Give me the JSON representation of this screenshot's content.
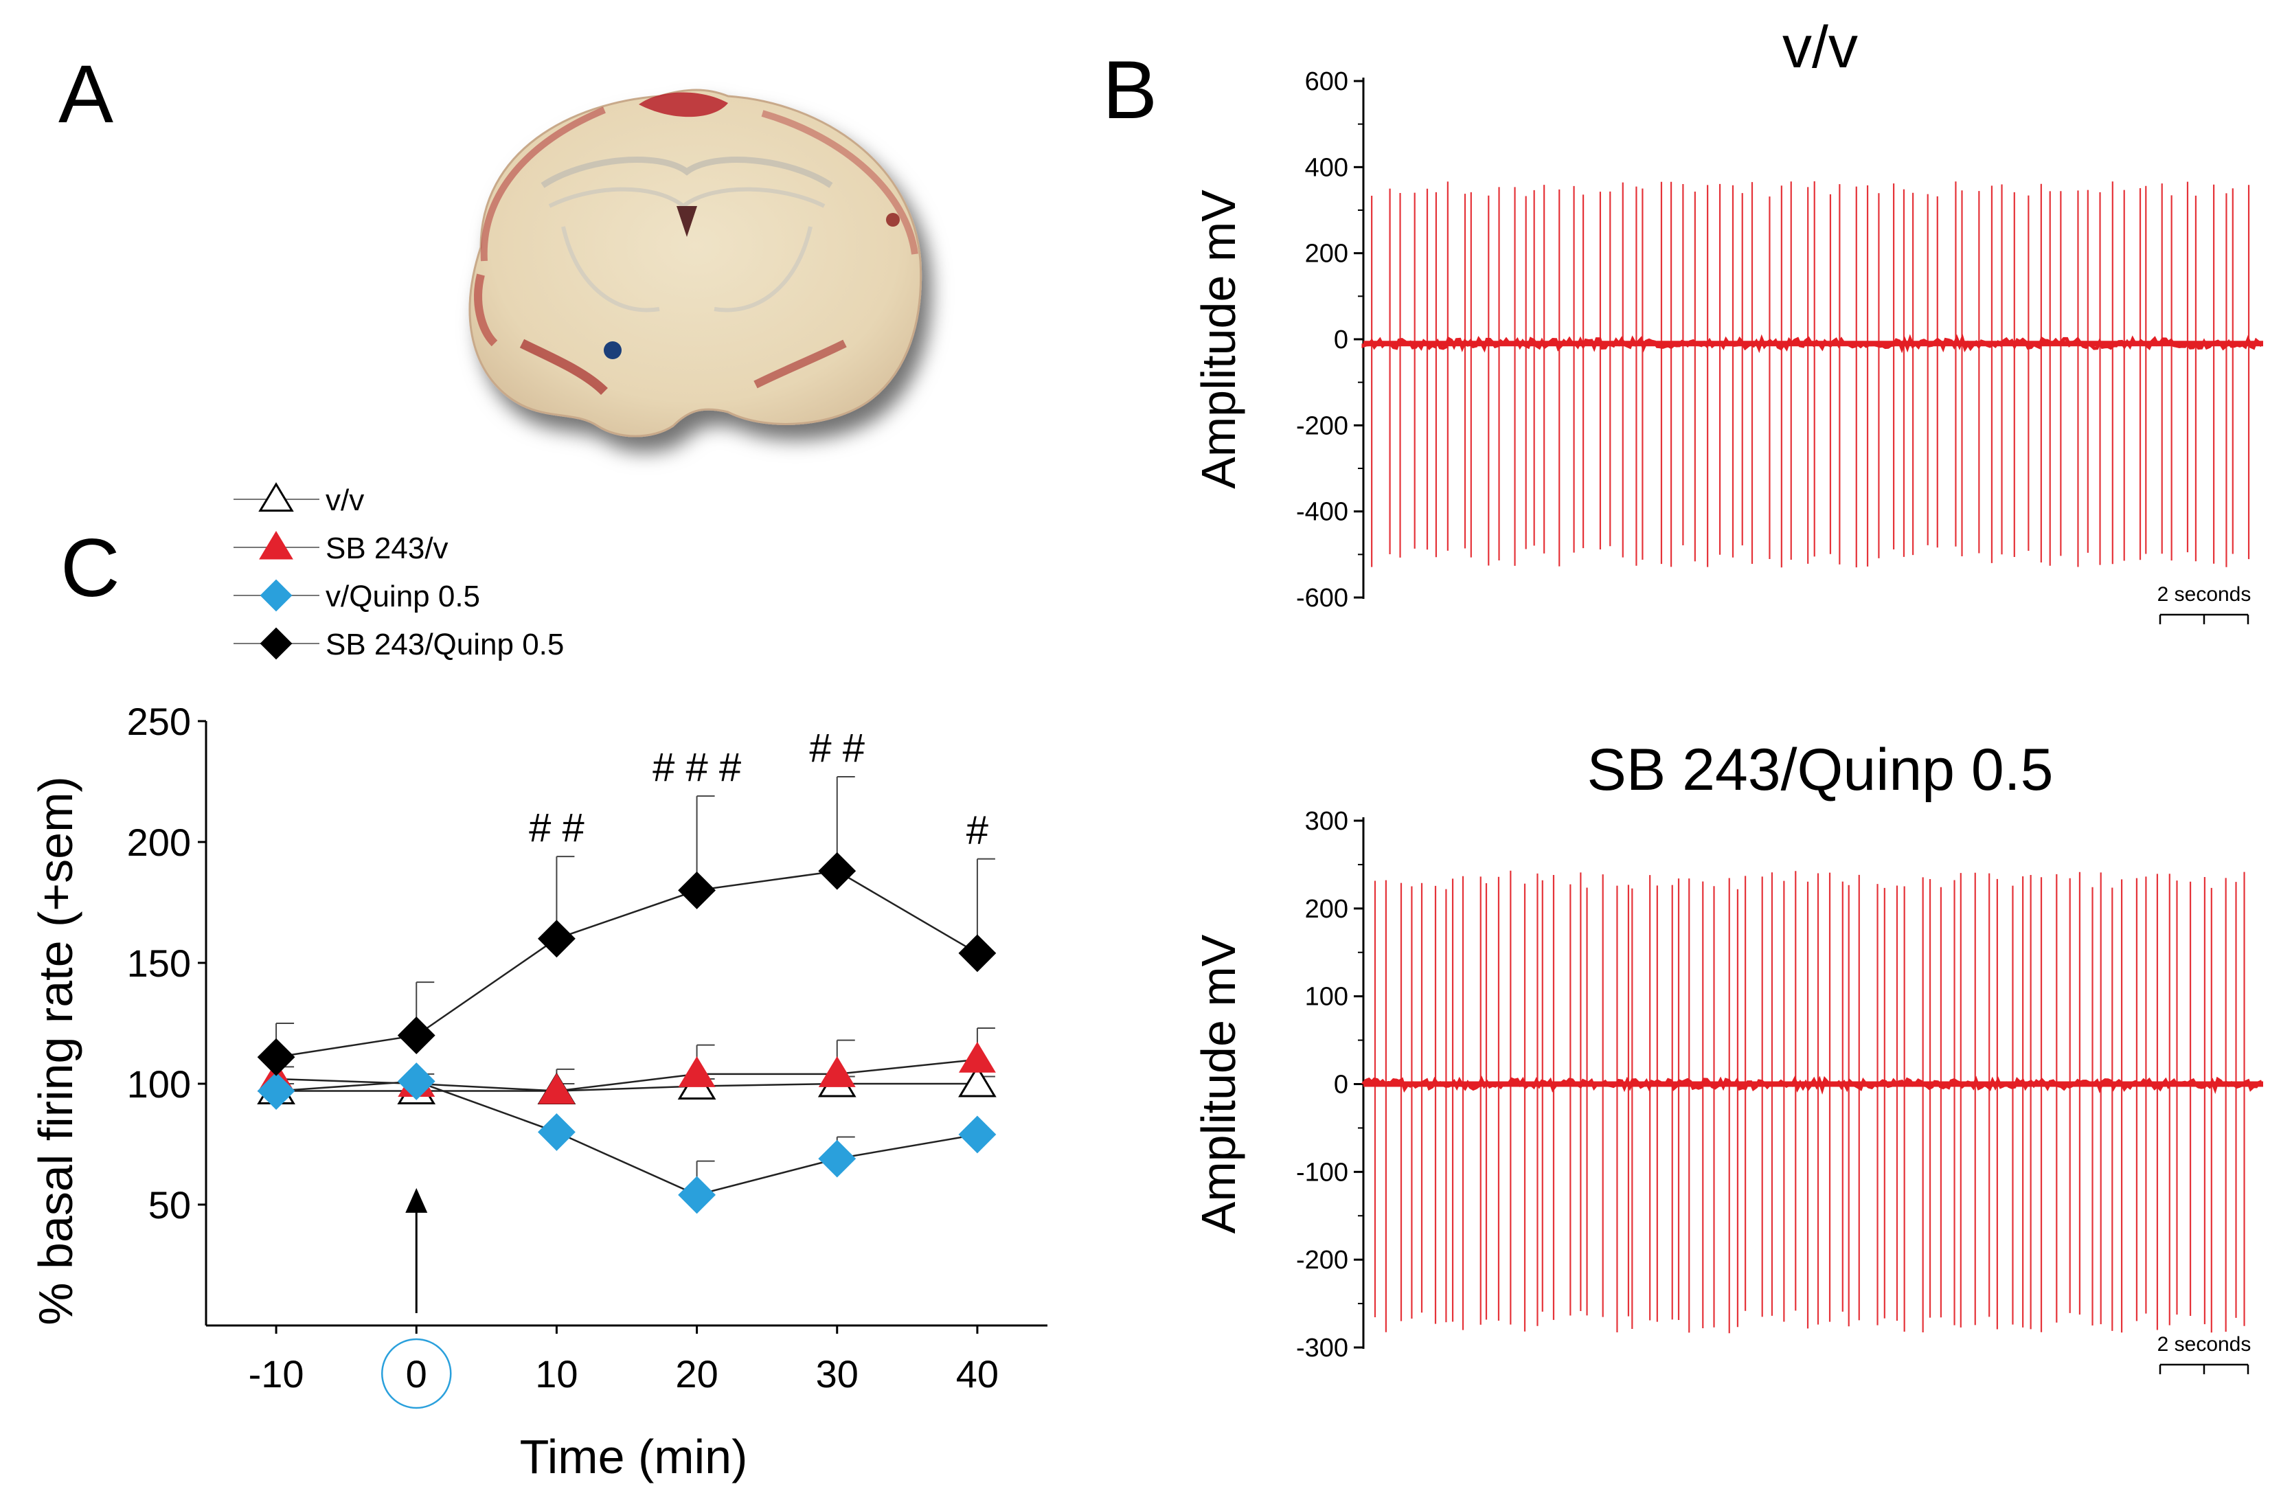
{
  "figure": {
    "panel_labels": {
      "a": "A",
      "b": "B",
      "c": "C"
    },
    "image_a": {
      "icon": "coronal-brain-section-image"
    }
  },
  "chart_data": [
    {
      "id": "C",
      "type": "line",
      "xlabel": "Time (min)",
      "ylabel": "% basal firing rate (+sem)",
      "x": [
        -10,
        0,
        10,
        20,
        30,
        40
      ],
      "xticks": [
        "-10",
        "0",
        "10",
        "20",
        "30",
        "40"
      ],
      "xlim": [
        -15,
        45
      ],
      "ylim": [
        0,
        250
      ],
      "yticks": [
        "50",
        "100",
        "150",
        "200",
        "250"
      ],
      "series": [
        {
          "name": "v/v",
          "marker": "triangle-open",
          "color": "#ffffff",
          "edge": "#000000",
          "values": [
            97,
            97,
            97,
            99,
            100,
            100
          ],
          "err": [
            3,
            4,
            3,
            3,
            3,
            3
          ]
        },
        {
          "name": "SB 243/v",
          "marker": "triangle",
          "color": "#e3222d",
          "edge": "#e3222d",
          "values": [
            102,
            100,
            97,
            104,
            104,
            110
          ],
          "err": [
            5,
            4,
            9,
            12,
            14,
            13
          ]
        },
        {
          "name": "v/Quinp 0.5",
          "marker": "diamond",
          "color": "#2aa0dc",
          "edge": "#2aa0dc",
          "values": [
            97,
            101,
            80,
            54,
            69,
            79
          ],
          "err": [
            0,
            0,
            0,
            14,
            9,
            0
          ]
        },
        {
          "name": "SB 243/Quinp 0.5",
          "marker": "diamond",
          "color": "#000000",
          "edge": "#000000",
          "values": [
            111,
            120,
            160,
            180,
            188,
            154
          ],
          "err": [
            14,
            22,
            34,
            39,
            39,
            39
          ]
        }
      ],
      "annotations": [
        {
          "x": 10,
          "text": "# #"
        },
        {
          "x": 20,
          "text": "# # #"
        },
        {
          "x": 30,
          "text": "# #"
        },
        {
          "x": 40,
          "text": "#"
        }
      ],
      "injection_marker": {
        "x": 0,
        "arrow_from": 0,
        "arrow_to": 58
      },
      "highlighted_tick": "0",
      "legend": "top-left"
    },
    {
      "id": "B-top",
      "type": "line",
      "title": "v/v",
      "ylabel": "Amplitude mV",
      "ylim": [
        -600,
        600
      ],
      "yticks": [
        "600",
        "400",
        "200",
        "0",
        "-200",
        "-400",
        "-600"
      ],
      "trace_color": "#e31e24",
      "baseline": -10,
      "spike_count": 72,
      "spike_peak": 360,
      "spike_trough": -520,
      "scale_bar": "2 seconds"
    },
    {
      "id": "B-bottom",
      "type": "line",
      "title": "SB 243/Quinp 0.5",
      "ylabel": "Amplitude mV",
      "ylim": [
        -300,
        300
      ],
      "yticks": [
        "300",
        "200",
        "100",
        "0",
        "-100",
        "-200",
        "-300"
      ],
      "trace_color": "#e31e24",
      "baseline": 0,
      "spike_count": 78,
      "spike_peak": 240,
      "spike_trough": -280,
      "scale_bar": "2 seconds"
    }
  ]
}
